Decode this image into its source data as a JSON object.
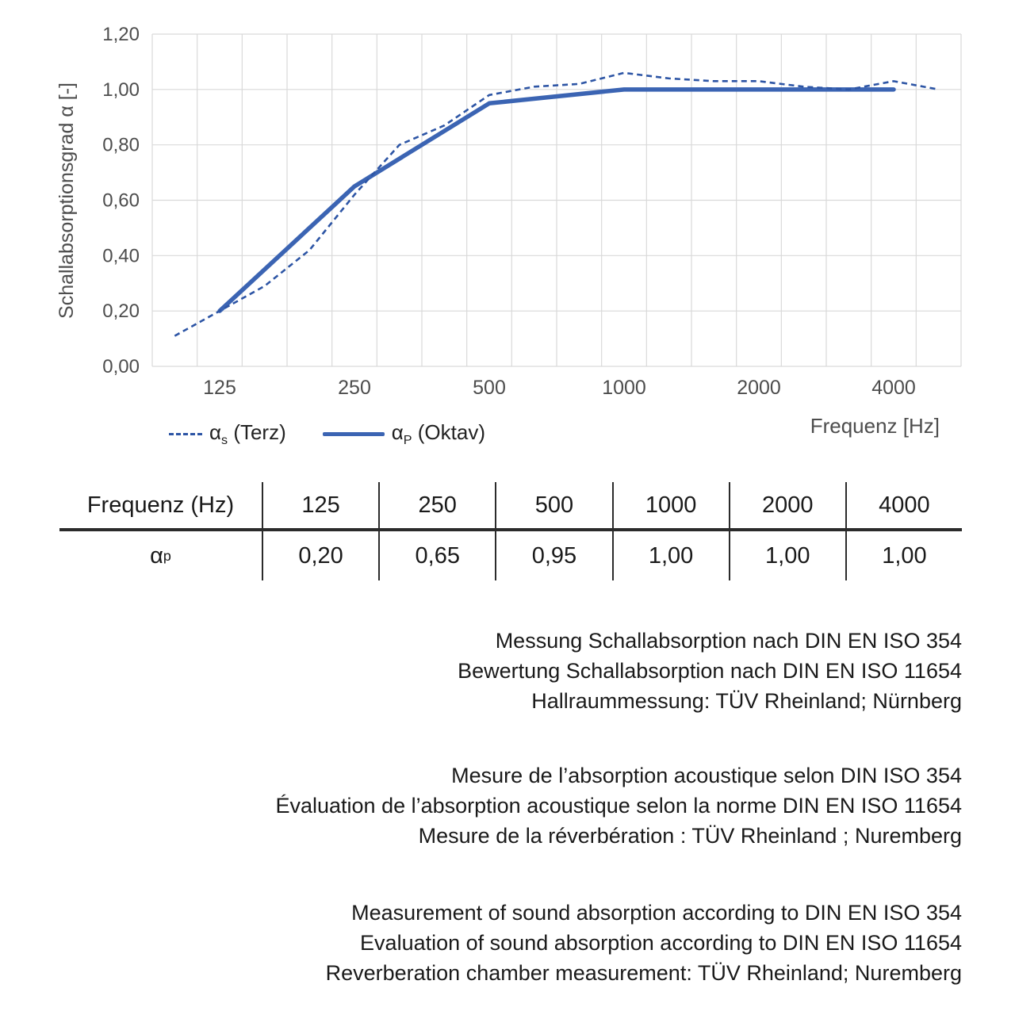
{
  "chart": {
    "legend": {
      "terz": {
        "base": "α",
        "sub": "s",
        "rest": " (Terz)"
      },
      "oktav": {
        "base": "α",
        "sub": "P",
        "rest": " (Oktav)"
      }
    }
  },
  "chart_data": {
    "type": "line",
    "x_scale": "third-octave log categories",
    "x_categories": [
      100,
      125,
      160,
      200,
      250,
      315,
      400,
      500,
      630,
      800,
      1000,
      1250,
      1600,
      2000,
      2500,
      3150,
      4000,
      5000
    ],
    "series": [
      {
        "name": "αs (Terz)",
        "line_style": "dashed",
        "x": [
          100,
          125,
          160,
          200,
          250,
          315,
          400,
          500,
          630,
          800,
          1000,
          1250,
          1600,
          2000,
          2500,
          3150,
          4000,
          5000
        ],
        "values": [
          0.11,
          0.2,
          0.29,
          0.42,
          0.62,
          0.8,
          0.87,
          0.98,
          1.01,
          1.02,
          1.06,
          1.04,
          1.03,
          1.03,
          1.01,
          1.0,
          1.03,
          1.0
        ]
      },
      {
        "name": "αP (Oktav)",
        "line_style": "solid",
        "x": [
          125,
          250,
          500,
          1000,
          2000,
          4000
        ],
        "values": [
          0.2,
          0.65,
          0.95,
          1.0,
          1.0,
          1.0
        ]
      }
    ],
    "title": "",
    "xlabel": "Frequenz [Hz]",
    "ylabel": "Schallabsorptionsgrad α [-]",
    "x_tick_values": [
      125,
      250,
      500,
      1000,
      2000,
      4000
    ],
    "y_ticks": [
      "0,00",
      "0,20",
      "0,40",
      "0,60",
      "0,80",
      "1,00",
      "1,20"
    ],
    "ylim": [
      0,
      1.2
    ],
    "grid": true,
    "legend_position": "bottom-left"
  },
  "table": {
    "header_label": "Frequenz (Hz)",
    "row_label": {
      "base": "α",
      "sub": "p"
    },
    "frequencies": [
      "125",
      "250",
      "500",
      "1000",
      "2000",
      "4000"
    ],
    "alpha_p_values": [
      "0,20",
      "0,65",
      "0,95",
      "1,00",
      "1,00",
      "1,00"
    ]
  },
  "notes": {
    "german": [
      "Messung Schallabsorption nach DIN EN ISO 354",
      "Bewertung Schallabsorption nach DIN EN ISO 11654",
      "Hallraummessung: TÜV Rheinland; Nürnberg"
    ],
    "french": [
      "Mesure de l’absorption acoustique selon DIN ISO 354",
      "Évaluation de l’absorption acoustique selon la norme DIN EN ISO 11654",
      "Mesure de la réverbération : TÜV Rheinland ; Nuremberg"
    ],
    "english": [
      "Measurement of sound absorption according to DIN EN ISO 354",
      "Evaluation of sound absorption according to DIN EN ISO 11654",
      "Reverberation chamber measurement: TÜV Rheinland; Nuremberg"
    ]
  },
  "colors": {
    "line_solid": "#3B64B3",
    "line_dashed": "#2D55A5",
    "grid": "#D9D9D9",
    "axis_text": "#4D4D4D",
    "text": "#1A1A1A",
    "table_line": "#2B2B2B"
  }
}
